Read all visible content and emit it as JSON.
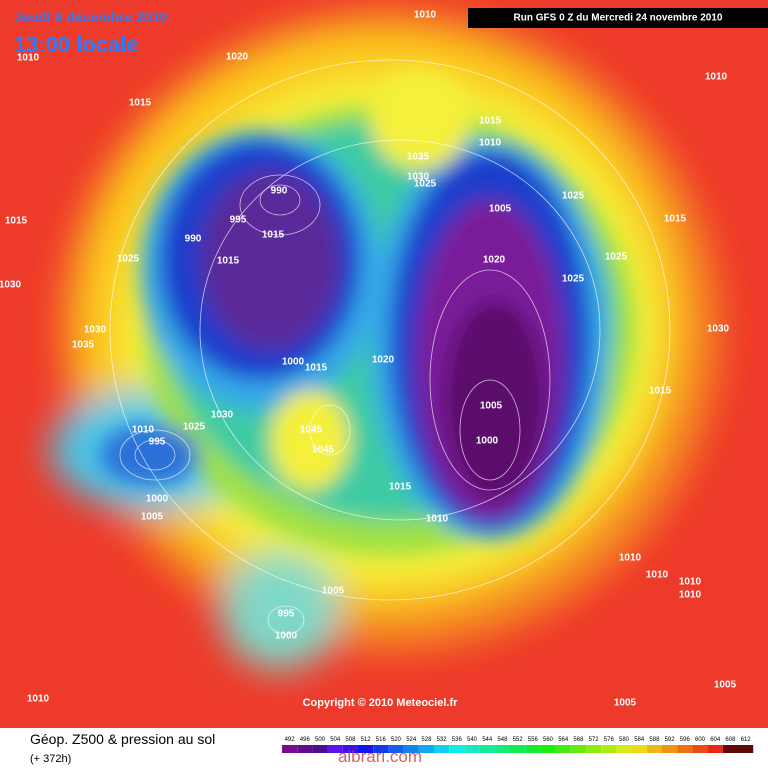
{
  "header": {
    "date": "Jeudi 9 décembre 2010",
    "time": "13:00 locale",
    "run": "Run GFS 0 Z du Mercredi 24 novembre 2010"
  },
  "pressure_labels": [
    "1010",
    "1010",
    "1020",
    "1010",
    "1015",
    "1015",
    "1010",
    "1035",
    "1030",
    "1025",
    "990",
    "1005",
    "1025",
    "1015",
    "995",
    "990",
    "1015",
    "1015",
    "1015",
    "1025",
    "1020",
    "1025",
    "1025",
    "1030",
    "1030",
    "1030",
    "1035",
    "1000",
    "1015",
    "1020",
    "1015",
    "1005",
    "1030",
    "1025",
    "1010",
    "1045",
    "995",
    "1000",
    "1045",
    "1015",
    "1000",
    "1005",
    "1010",
    "1010",
    "1010",
    "1010",
    "1005",
    "1010",
    "995",
    "1000",
    "1010",
    "1005",
    "1005"
  ],
  "copyright": "Copyright © 2010 Meteociel.fr",
  "footer": {
    "title": "Géop. Z500 & pression au sol",
    "lead": "(+ 372h)"
  },
  "legend": {
    "values": [
      492,
      496,
      500,
      504,
      508,
      512,
      516,
      520,
      524,
      528,
      532,
      536,
      540,
      544,
      548,
      552,
      556,
      560,
      564,
      568,
      572,
      576,
      580,
      584,
      588,
      592,
      596,
      600,
      604,
      608,
      612
    ]
  },
  "watermark": "albrari.com"
}
